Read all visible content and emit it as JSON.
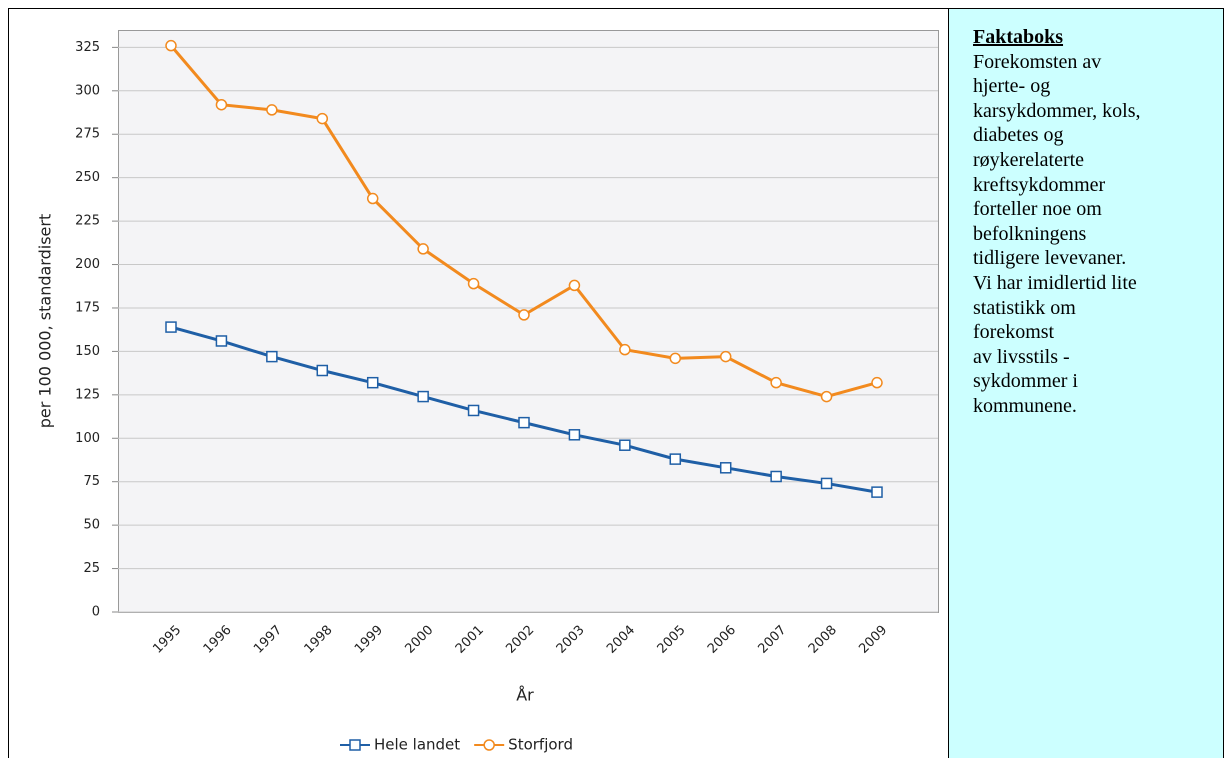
{
  "chart_data": {
    "type": "line",
    "xlabel": "År",
    "ylabel": "per 100 000, standardisert",
    "categories": [
      "1995",
      "1996",
      "1997",
      "1998",
      "1999",
      "2000",
      "2001",
      "2002",
      "2003",
      "2004",
      "2005",
      "2006",
      "2007",
      "2008",
      "2009"
    ],
    "series": [
      {
        "name": "Hele landet",
        "color": "#1f5fa6",
        "marker": "square",
        "values": [
          164,
          156,
          147,
          139,
          132,
          124,
          116,
          109,
          102,
          96,
          88,
          83,
          78,
          74,
          69
        ]
      },
      {
        "name": "Storfjord",
        "color": "#f28a1e",
        "marker": "circle",
        "values": [
          326,
          292,
          289,
          284,
          238,
          209,
          189,
          171,
          188,
          151,
          146,
          147,
          132,
          124,
          132
        ]
      }
    ],
    "ylim": [
      0,
      335
    ],
    "yticks": [
      0,
      25,
      50,
      75,
      100,
      125,
      150,
      175,
      200,
      225,
      250,
      275,
      300,
      325
    ],
    "grid": true,
    "legend": "bottom"
  },
  "factbox": {
    "title": "Faktaboks",
    "lines": [
      "Forekomsten av",
      "hjerte- og",
      "karsykdommer, kols,",
      "diabetes og",
      "røykerelaterte",
      "kreftsykdommer",
      "forteller noe om",
      "befolkningens",
      "tidligere levevaner.",
      "Vi har imidlertid lite",
      "statistikk om",
      "forekomst",
      "av livsstils -",
      "sykdommer i",
      "kommunene."
    ]
  }
}
